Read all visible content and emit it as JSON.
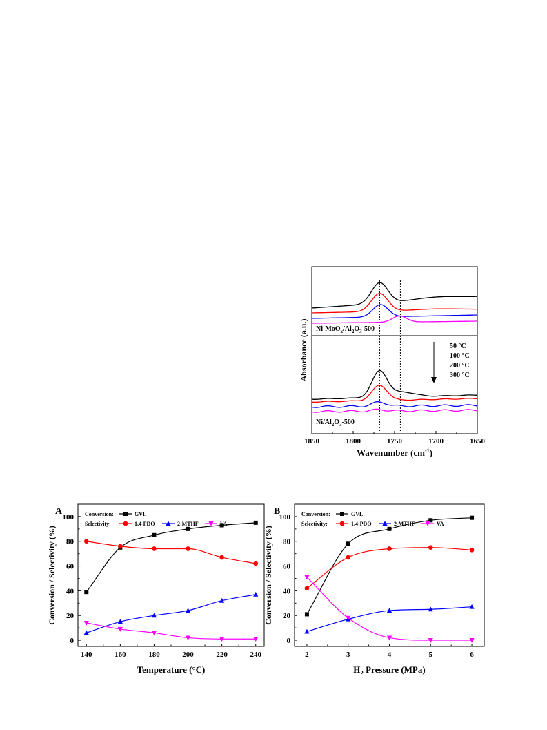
{
  "chart_data": [
    {
      "type": "line",
      "panel": "ftir",
      "xlabel": "Wavenumber (cm",
      "xlabel_sup": "-1",
      "xlabel_close": ")",
      "ylabel": "Absorbance (a.u.)",
      "xlim": [
        1850,
        1650
      ],
      "x_ticks": [
        1850,
        1800,
        1750,
        1700,
        1650
      ],
      "x_reversed": true,
      "dashed_lines_at": [
        1768,
        1743
      ],
      "upper_panel_label": "Ni-MoO",
      "upper_panel_label_sub1": "x",
      "upper_panel_label_mid": "/Al",
      "upper_panel_label_sub2": "2",
      "upper_panel_label_mid2": "O",
      "upper_panel_label_sub3": "3",
      "upper_panel_label_end": "-500",
      "lower_panel_label": "Ni/Al",
      "lower_panel_label_sub1": "2",
      "lower_panel_label_mid": "O",
      "lower_panel_label_sub2": "3",
      "lower_panel_label_end": "-500",
      "temperature_legend": [
        "50 °C",
        "100 °C",
        "200 °C",
        "300 °C"
      ],
      "series_colors": [
        "#000000",
        "#ff0000",
        "#0000ff",
        "#ff00ff"
      ]
    },
    {
      "type": "line",
      "panel": "A",
      "label": "A",
      "xlabel": "Temperature (°C)",
      "ylabel": "Conversion / Selectivity (%)",
      "xlim": [
        135,
        245
      ],
      "ylim": [
        -5,
        110
      ],
      "x_ticks": [
        140,
        160,
        180,
        200,
        220,
        240
      ],
      "y_ticks": [
        0,
        20,
        40,
        60,
        80,
        100
      ],
      "legend_conversion_label": "Conversion:",
      "legend_selectivity_label": "Selectivity:",
      "x": [
        140,
        160,
        180,
        200,
        220,
        240
      ],
      "series": [
        {
          "name": "GVL",
          "group": "conversion",
          "values": [
            39,
            75,
            85,
            90,
            93,
            95
          ],
          "color": "#000000",
          "marker": "square"
        },
        {
          "name": "1,4-PDO",
          "group": "selectivity",
          "values": [
            80,
            76,
            74,
            74,
            67,
            62
          ],
          "color": "#ff0000",
          "marker": "circle"
        },
        {
          "name": "2-MTHF",
          "group": "selectivity",
          "values": [
            6,
            15,
            20,
            24,
            32,
            37
          ],
          "color": "#0000ff",
          "marker": "triangle-up"
        },
        {
          "name": "VA",
          "group": "selectivity",
          "values": [
            14,
            9,
            6,
            2,
            1,
            1
          ],
          "color": "#ff00ff",
          "marker": "triangle-down"
        }
      ]
    },
    {
      "type": "line",
      "panel": "B",
      "label": "B",
      "xlabel": "H",
      "xlabel_sub": "2",
      "xlabel_rest": " Pressure (MPa)",
      "ylabel": "Conversion / Selectivity (%)",
      "xlim": [
        1.7,
        6.3
      ],
      "ylim": [
        -5,
        110
      ],
      "x_ticks": [
        2,
        3,
        4,
        5,
        6
      ],
      "y_ticks": [
        0,
        20,
        40,
        60,
        80,
        100
      ],
      "legend_conversion_label": "Conversion:",
      "legend_selectivity_label": "Selectivity:",
      "x": [
        2,
        3,
        4,
        5,
        6
      ],
      "series": [
        {
          "name": "GVL",
          "group": "conversion",
          "values": [
            21,
            78,
            90,
            97,
            99
          ],
          "color": "#000000",
          "marker": "square"
        },
        {
          "name": "1,4-PDO",
          "group": "selectivity",
          "values": [
            42,
            67,
            74,
            75,
            73
          ],
          "color": "#ff0000",
          "marker": "circle"
        },
        {
          "name": "2-MTHF",
          "group": "selectivity",
          "values": [
            7,
            17,
            24,
            25,
            27
          ],
          "color": "#0000ff",
          "marker": "triangle-up"
        },
        {
          "name": "VA",
          "group": "selectivity",
          "values": [
            51,
            18,
            2,
            0,
            0
          ],
          "color": "#ff00ff",
          "marker": "triangle-down"
        }
      ]
    }
  ]
}
